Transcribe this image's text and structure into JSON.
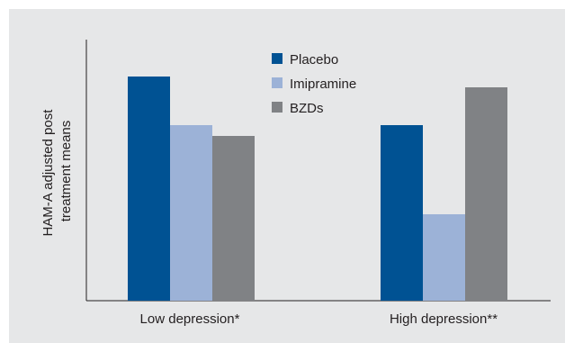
{
  "chart_data": {
    "type": "bar",
    "categories": [
      "Low depression*",
      "High depression**"
    ],
    "ylabel": "HAM-A adjusted post treatment means",
    "ylabel_lines": [
      "HAM-A adjusted post",
      "treatment means"
    ],
    "ylim": [
      0,
      100
    ],
    "grid": false,
    "legend_position": "top-center",
    "series": [
      {
        "name": "Placebo",
        "values": [
          83,
          65
        ],
        "color": "#005293"
      },
      {
        "name": "Imipramine",
        "values": [
          65,
          32
        ],
        "color": "#9cb2d7"
      },
      {
        "name": "BZDs",
        "values": [
          61,
          79
        ],
        "color": "#808285"
      }
    ]
  }
}
